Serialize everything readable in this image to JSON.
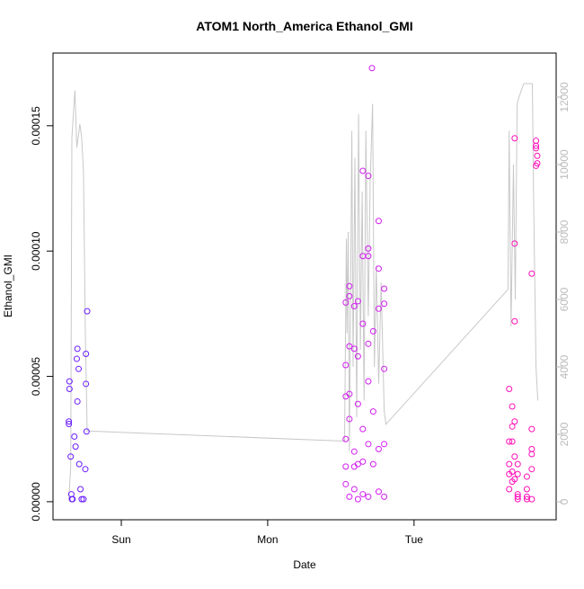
{
  "chart_data": {
    "type": "scatter",
    "title": "ATOM1 North_America Ethanol_GMI",
    "x_label": "Date",
    "y_label": "Ethanol_GMI",
    "xlim": [
      -11.2,
      71.3
    ],
    "xticks": [
      {
        "value": 0,
        "label": "Sun"
      },
      {
        "value": 24,
        "label": "Mon"
      },
      {
        "value": 48,
        "label": "Tue"
      }
    ],
    "ylim": [
      -7.2e-06,
      0.000179
    ],
    "yticks": [
      {
        "value": 0,
        "label": "0.00000"
      },
      {
        "value": 5e-05,
        "label": "0.00005"
      },
      {
        "value": 0.0001,
        "label": "0.00010"
      },
      {
        "value": 0.00015,
        "label": "0.00015"
      }
    ],
    "y2lim": [
      -533,
      13307
    ],
    "y2ticks": [
      0,
      2000,
      4000,
      6000,
      8000,
      10000,
      12000
    ],
    "groups": [
      {
        "color": "#6a1cff",
        "x": [
          -8.6,
          -8.6,
          -8.5,
          -8.5,
          -8.3,
          -8.2,
          -8.1,
          -7.7,
          -7.5,
          -7.3,
          -7.2,
          -7.2,
          -7.0,
          -6.9,
          -6.7,
          -6.5,
          -5.8,
          -5.8,
          -5.6,
          -5.7,
          -5.9,
          -6.2,
          -8.0
        ],
        "y": [
          3.2e-05,
          3.1e-05,
          4.8e-05,
          4.5e-05,
          1.8e-05,
          3e-06,
          1e-06,
          2.6e-05,
          2.2e-05,
          5.7e-05,
          6.1e-05,
          4e-05,
          5.3e-05,
          1.5e-05,
          5e-06,
          1e-06,
          5.9e-05,
          4.7e-05,
          7.6e-05,
          2.8e-05,
          1.3e-05,
          1e-06,
          1e-06
        ]
      },
      {
        "color": "#d21cf0",
        "x": [
          36.8,
          36.8,
          36.8,
          36.8,
          36.8,
          36.8,
          37.4,
          37.4,
          37.4,
          37.4,
          37.4,
          37.4,
          38.2,
          38.2,
          38.2,
          38.2,
          38.2,
          38.8,
          38.8,
          38.8,
          38.8,
          38.8,
          39.6,
          39.6,
          39.6,
          39.6,
          39.6,
          39.6,
          40.5,
          40.5,
          40.5,
          40.5,
          40.5,
          40.5,
          40.5,
          41.1,
          41.3,
          41.3,
          41.3,
          42.2,
          42.2,
          42.2,
          42.2,
          42.2,
          43.1,
          43.1,
          43.1,
          43.1,
          43.1
        ],
        "y": [
          7.95e-05,
          5.45e-05,
          4.2e-05,
          2.5e-05,
          1.4e-05,
          7e-06,
          6.2e-05,
          8.2e-05,
          8.6e-05,
          4.3e-05,
          3.3e-05,
          2e-06,
          2e-05,
          1.4e-05,
          5e-06,
          7.8e-05,
          6.1e-05,
          8e-05,
          5.8e-05,
          3.9e-05,
          1.5e-05,
          1e-06,
          9.8e-05,
          0.000132,
          7.1e-05,
          2.9e-05,
          1.6e-05,
          3e-06,
          0.000101,
          9.8e-05,
          0.00013,
          6.3e-05,
          4.8e-05,
          2.3e-05,
          2e-06,
          0.000173,
          6.8e-05,
          3.6e-05,
          1.5e-05,
          0.000112,
          9.3e-05,
          7.7e-05,
          2.1e-05,
          4e-06,
          8.5e-05,
          7.9e-05,
          5.3e-05,
          2.3e-05,
          2e-06
        ]
      },
      {
        "color": "#ff10b8",
        "x": [
          63.6,
          63.6,
          63.6,
          63.6,
          63.6,
          64.1,
          64.1,
          64.1,
          64.1,
          64.1,
          64.5,
          64.5,
          64.5,
          64.5,
          64.5,
          64.5,
          65.0,
          65.0,
          65.0,
          65.0,
          65.0,
          66.5,
          66.5,
          66.5,
          66.5,
          67.3,
          67.3,
          67.3,
          67.3,
          67.3,
          67.3,
          68.0,
          68.0,
          68.0,
          68.0,
          68.2,
          68.2
        ],
        "y": [
          4.5e-05,
          2.4e-05,
          1.5e-05,
          1.1e-05,
          5e-06,
          2.4e-05,
          3.8e-05,
          3e-05,
          1.2e-05,
          8e-06,
          0.000145,
          0.000103,
          7.2e-05,
          3.2e-05,
          1.8e-05,
          9e-06,
          2e-06,
          1e-06,
          3e-06,
          1.5e-05,
          1.1e-05,
          1e-06,
          2e-06,
          5e-06,
          1e-05,
          9.1e-05,
          2.9e-05,
          2.1e-05,
          1.9e-05,
          1.3e-05,
          1e-06,
          0.000144,
          0.000142,
          0.000141,
          0.000134,
          0.000138,
          0.000135
        ]
      }
    ],
    "line": {
      "axis": "y2",
      "color": "#c8c8c8",
      "x": [
        -8.6,
        -8.3,
        -8.1,
        -7.6,
        -7.3,
        -6.8,
        -6.5,
        -6.2,
        -5.9,
        -5.6,
        36.6,
        36.9,
        37.0,
        37.2,
        37.4,
        37.8,
        38.0,
        38.3,
        38.6,
        38.9,
        39.2,
        39.5,
        39.8,
        40.1,
        40.5,
        40.8,
        41.2,
        41.5,
        41.8,
        42.2,
        42.6,
        43.1,
        43.4,
        63.4,
        63.6,
        63.9,
        64.3,
        64.6,
        64.9,
        65.2,
        66.0,
        67.4,
        67.6,
        68.0,
        68.3
      ],
      "values": [
        100,
        1000,
        10800,
        12200,
        10500,
        11200,
        10800,
        9800,
        5000,
        2100,
        1800,
        7800,
        5000,
        8000,
        1500,
        11000,
        4000,
        10200,
        2500,
        11500,
        4500,
        9200,
        3000,
        11000,
        5500,
        9500,
        11800,
        4000,
        7000,
        3500,
        6500,
        2700,
        2300,
        6300,
        11000,
        5200,
        10000,
        6000,
        11800,
        12000,
        12400,
        12400,
        9000,
        4000,
        3000
      ]
    }
  }
}
